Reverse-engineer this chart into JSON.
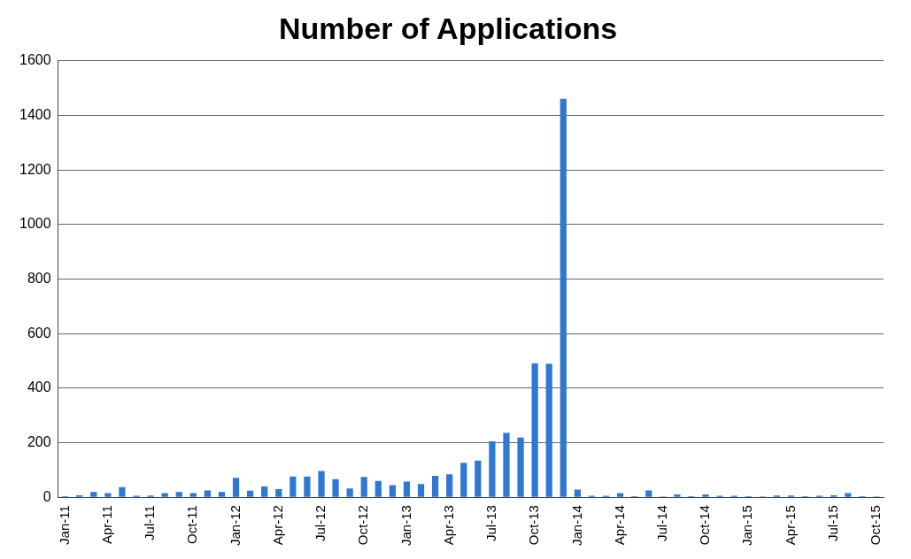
{
  "chart_data": {
    "type": "bar",
    "title": "Number of Applications",
    "categories": [
      "Jan-11",
      null,
      null,
      "Apr-11",
      null,
      null,
      "Jul-11",
      null,
      null,
      "Oct-11",
      null,
      null,
      "Jan-12",
      null,
      null,
      "Apr-12",
      null,
      null,
      "Jul-12",
      null,
      null,
      "Oct-12",
      null,
      null,
      "Jan-13",
      null,
      null,
      "Apr-13",
      null,
      null,
      "Jul-13",
      null,
      null,
      "Oct-13",
      null,
      null,
      "Jan-14",
      null,
      null,
      "Apr-14",
      null,
      null,
      "Jul-14",
      null,
      null,
      "Oct-14",
      null,
      null,
      "Jan-15",
      null,
      null,
      "Apr-15",
      null,
      null,
      "Jul-15",
      null,
      null,
      "Oct-15"
    ],
    "values": [
      4,
      7,
      19,
      15,
      37,
      5,
      6,
      15,
      19,
      15,
      25,
      19,
      71,
      24,
      39,
      30,
      76,
      76,
      96,
      66,
      32,
      74,
      60,
      44,
      57,
      48,
      78,
      84,
      126,
      134,
      205,
      236,
      219,
      491,
      489,
      1461,
      28,
      5,
      5,
      15,
      4,
      25,
      3,
      10,
      4,
      10,
      5,
      5,
      4,
      3,
      6,
      6,
      4,
      5,
      7,
      15,
      4,
      3
    ],
    "color": "#2e78d2",
    "ylim": [
      0,
      1600
    ],
    "yticks": [
      0,
      200,
      400,
      600,
      800,
      1000,
      1200,
      1400,
      1600
    ],
    "grid": "y"
  }
}
